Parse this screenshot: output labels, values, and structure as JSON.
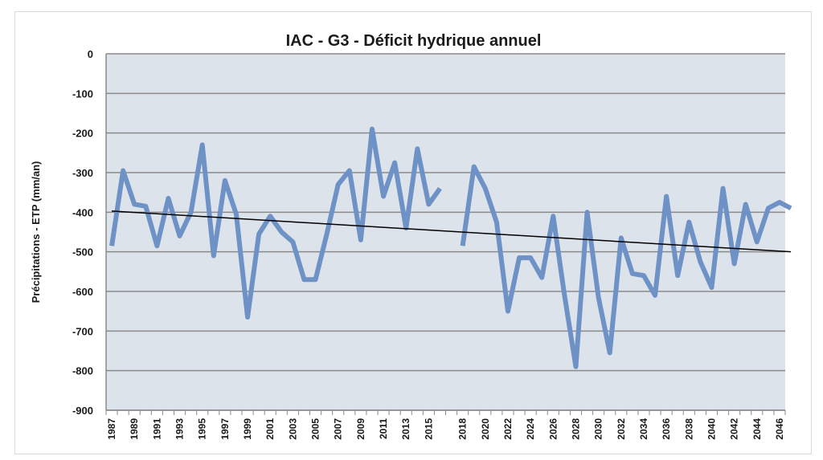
{
  "chart_data": {
    "type": "line",
    "title": "IAC - G3 - Déficit hydrique annuel",
    "xlabel": "",
    "ylabel": "Précipitations - ETP (mm/an)",
    "ylim": [
      -900,
      0
    ],
    "yticks": [
      0,
      -100,
      -200,
      -300,
      -400,
      -500,
      -600,
      -700,
      -800,
      -900
    ],
    "xlim": [
      1987,
      2046
    ],
    "xticks": [
      "1987",
      "1989",
      "1991",
      "1993",
      "1995",
      "1997",
      "1999",
      "2001",
      "2003",
      "2005",
      "2007",
      "2009",
      "2011",
      "2013",
      "2015",
      "2018",
      "2020",
      "2022",
      "2024",
      "2026",
      "2028",
      "2030",
      "2032",
      "2034",
      "2036",
      "2038",
      "2040",
      "2042",
      "2044",
      "2046"
    ],
    "grid": true,
    "plot_background": "#dde3ea",
    "series": [
      {
        "color": "#6f92c6",
        "values": [
          {
            "x": 1987,
            "y": -485
          },
          {
            "x": 1988,
            "y": -295
          },
          {
            "x": 1989,
            "y": -380
          },
          {
            "x": 1990,
            "y": -385
          },
          {
            "x": 1991,
            "y": -485
          },
          {
            "x": 1992,
            "y": -365
          },
          {
            "x": 1993,
            "y": -460
          },
          {
            "x": 1994,
            "y": -400
          },
          {
            "x": 1995,
            "y": -230
          },
          {
            "x": 1996,
            "y": -510
          },
          {
            "x": 1997,
            "y": -320
          },
          {
            "x": 1998,
            "y": -405
          },
          {
            "x": 1999,
            "y": -665
          },
          {
            "x": 2000,
            "y": -455
          },
          {
            "x": 2001,
            "y": -410
          },
          {
            "x": 2002,
            "y": -450
          },
          {
            "x": 2003,
            "y": -475
          },
          {
            "x": 2004,
            "y": -570
          },
          {
            "x": 2005,
            "y": -570
          },
          {
            "x": 2006,
            "y": -455
          },
          {
            "x": 2007,
            "y": -330
          },
          {
            "x": 2008,
            "y": -295
          },
          {
            "x": 2009,
            "y": -470
          },
          {
            "x": 2010,
            "y": -190
          },
          {
            "x": 2011,
            "y": -360
          },
          {
            "x": 2012,
            "y": -275
          },
          {
            "x": 2013,
            "y": -440
          },
          {
            "x": 2014,
            "y": -240
          },
          {
            "x": 2015,
            "y": -380
          },
          {
            "x": 2016,
            "y": -340
          },
          {
            "x": 2017,
            "y": null
          },
          {
            "x": 2018,
            "y": -485
          },
          {
            "x": 2019,
            "y": -285
          },
          {
            "x": 2020,
            "y": -340
          },
          {
            "x": 2021,
            "y": -425
          },
          {
            "x": 2022,
            "y": -650
          },
          {
            "x": 2023,
            "y": -515
          },
          {
            "x": 2024,
            "y": -515
          },
          {
            "x": 2025,
            "y": -565
          },
          {
            "x": 2026,
            "y": -410
          },
          {
            "x": 2027,
            "y": -610
          },
          {
            "x": 2028,
            "y": -790
          },
          {
            "x": 2029,
            "y": -400
          },
          {
            "x": 2030,
            "y": -615
          },
          {
            "x": 2031,
            "y": -755
          },
          {
            "x": 2032,
            "y": -465
          },
          {
            "x": 2033,
            "y": -555
          },
          {
            "x": 2034,
            "y": -560
          },
          {
            "x": 2035,
            "y": -610
          },
          {
            "x": 2036,
            "y": -360
          },
          {
            "x": 2037,
            "y": -560
          },
          {
            "x": 2038,
            "y": -425
          },
          {
            "x": 2039,
            "y": -525
          },
          {
            "x": 2040,
            "y": -590
          },
          {
            "x": 2041,
            "y": -340
          },
          {
            "x": 2042,
            "y": -530
          },
          {
            "x": 2043,
            "y": -380
          },
          {
            "x": 2044,
            "y": -475
          },
          {
            "x": 2045,
            "y": -390
          },
          {
            "x": 2046,
            "y": -375
          },
          {
            "x": 2047,
            "y": -390
          }
        ]
      }
    ],
    "trendline": {
      "color": "#000000",
      "x": [
        1987,
        2047
      ],
      "y": [
        -397,
        -500
      ]
    }
  }
}
